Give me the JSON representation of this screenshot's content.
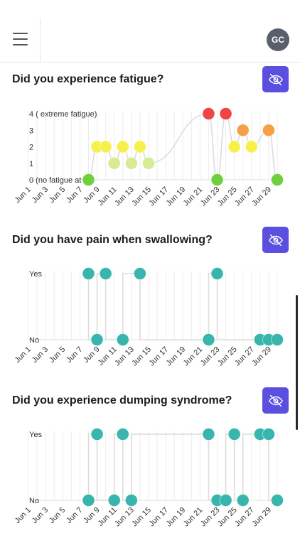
{
  "header": {
    "avatar_initials": "GC",
    "menu_icon": "hamburger-menu-icon"
  },
  "hide_icon": "eye-off-icon",
  "colors": {
    "accent": "#5b4fe0",
    "teal": "#38b5ad",
    "fatigue_0": "#6fcf3c",
    "fatigue_1": "#d7ea94",
    "fatigue_2": "#f8f04a",
    "fatigue_3": "#f5a046",
    "fatigue_4": "#ee4444"
  },
  "x_axis": {
    "day_range": [
      1,
      30
    ],
    "tick_labels": [
      "Jun 1",
      "Jun 3",
      "Jun 5",
      "Jun 7",
      "Jun 9",
      "Jun 11",
      "Jun 13",
      "Jun 15",
      "Jun 17",
      "Jun 19",
      "Jun 21",
      "Jun 23",
      "Jun 25",
      "Jun 27",
      "Jun 29"
    ]
  },
  "questions": [
    {
      "title": "Did you experience fatigue?",
      "y_labels": [
        "0 (no fatigue at all)",
        "1",
        "2",
        "3",
        "4 ( extreme fatigue)"
      ]
    },
    {
      "title": "Did you have pain when swallowing?",
      "y_labels": [
        "No",
        "Yes"
      ]
    },
    {
      "title": "Did you experience dumping syndrome?",
      "y_labels": [
        "No",
        "Yes"
      ]
    }
  ],
  "chart_data": [
    {
      "type": "line",
      "xlabel": "",
      "ylabel": "",
      "ylim": [
        0,
        4
      ],
      "points": [
        {
          "x": "Jun 8",
          "y": 0
        },
        {
          "x": "Jun 9",
          "y": 2
        },
        {
          "x": "Jun 10",
          "y": 2
        },
        {
          "x": "Jun 11",
          "y": 1
        },
        {
          "x": "Jun 12",
          "y": 2
        },
        {
          "x": "Jun 13",
          "y": 1
        },
        {
          "x": "Jun 14",
          "y": 2
        },
        {
          "x": "Jun 15",
          "y": 1
        },
        {
          "x": "Jun 22",
          "y": 4
        },
        {
          "x": "Jun 23",
          "y": 0
        },
        {
          "x": "Jun 24",
          "y": 4
        },
        {
          "x": "Jun 25",
          "y": 2
        },
        {
          "x": "Jun 26",
          "y": 3
        },
        {
          "x": "Jun 27",
          "y": 2
        },
        {
          "x": "Jun 29",
          "y": 3
        },
        {
          "x": "Jun 30",
          "y": 0
        }
      ]
    },
    {
      "type": "line",
      "xlabel": "",
      "ylabel": "",
      "categories_y": [
        "No",
        "Yes"
      ],
      "points": [
        {
          "x": "Jun 8",
          "y": "Yes"
        },
        {
          "x": "Jun 9",
          "y": "No"
        },
        {
          "x": "Jun 10",
          "y": "Yes"
        },
        {
          "x": "Jun 12",
          "y": "No"
        },
        {
          "x": "Jun 14",
          "y": "Yes"
        },
        {
          "x": "Jun 22",
          "y": "No"
        },
        {
          "x": "Jun 23",
          "y": "Yes"
        },
        {
          "x": "Jun 28",
          "y": "No"
        },
        {
          "x": "Jun 29",
          "y": "No"
        },
        {
          "x": "Jun 30",
          "y": "No"
        }
      ]
    },
    {
      "type": "line",
      "xlabel": "",
      "ylabel": "",
      "categories_y": [
        "No",
        "Yes"
      ],
      "points": [
        {
          "x": "Jun 8",
          "y": "No"
        },
        {
          "x": "Jun 9",
          "y": "Yes"
        },
        {
          "x": "Jun 11",
          "y": "No"
        },
        {
          "x": "Jun 12",
          "y": "Yes"
        },
        {
          "x": "Jun 13",
          "y": "No"
        },
        {
          "x": "Jun 22",
          "y": "Yes"
        },
        {
          "x": "Jun 23",
          "y": "No"
        },
        {
          "x": "Jun 24",
          "y": "No"
        },
        {
          "x": "Jun 25",
          "y": "Yes"
        },
        {
          "x": "Jun 26",
          "y": "No"
        },
        {
          "x": "Jun 28",
          "y": "Yes"
        },
        {
          "x": "Jun 29",
          "y": "Yes"
        },
        {
          "x": "Jun 30",
          "y": "No"
        }
      ]
    }
  ]
}
